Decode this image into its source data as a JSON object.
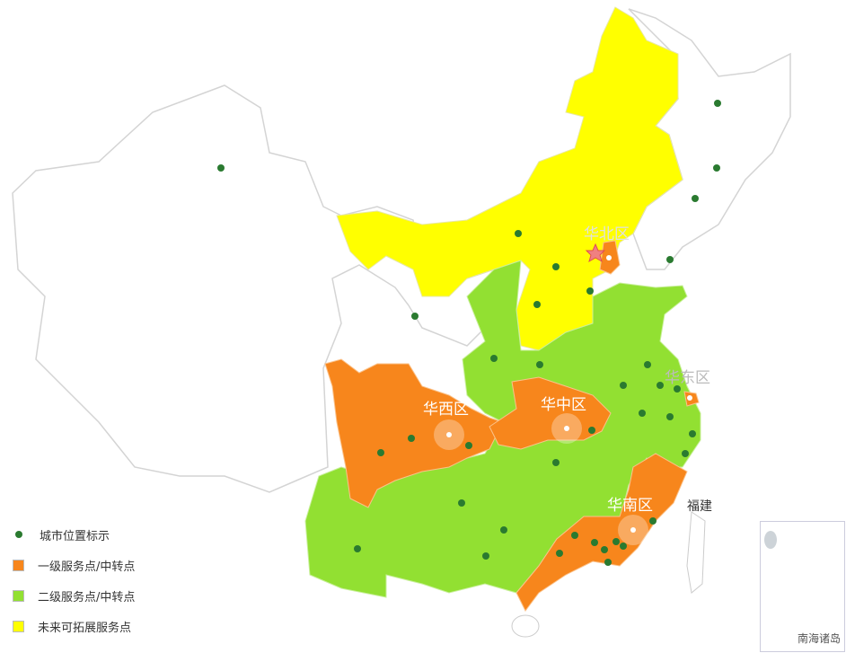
{
  "map": {
    "region_labels": {
      "north": "华北区",
      "east": "华东区",
      "west": "华西区",
      "central": "华中区",
      "south": "华南区"
    },
    "province_label": "福建",
    "inset_label": "南海诸岛",
    "colors": {
      "tier1": "#f7861c",
      "tier2": "#92e032",
      "future": "#ffff00",
      "city": "#2a7a30",
      "unassigned": "#ffffff",
      "border": "#d4d4d4"
    }
  },
  "legend": {
    "items": [
      {
        "label": "城市位置标示",
        "symbol": "dot",
        "color": "#2a7a30"
      },
      {
        "label": "一级服务点/中转点",
        "symbol": "square",
        "color": "#f7861c"
      },
      {
        "label": "二级服务点/中转点",
        "symbol": "square",
        "color": "#92e032"
      },
      {
        "label": "未来可拓展服务点",
        "symbol": "square",
        "color": "#ffff00"
      }
    ]
  }
}
